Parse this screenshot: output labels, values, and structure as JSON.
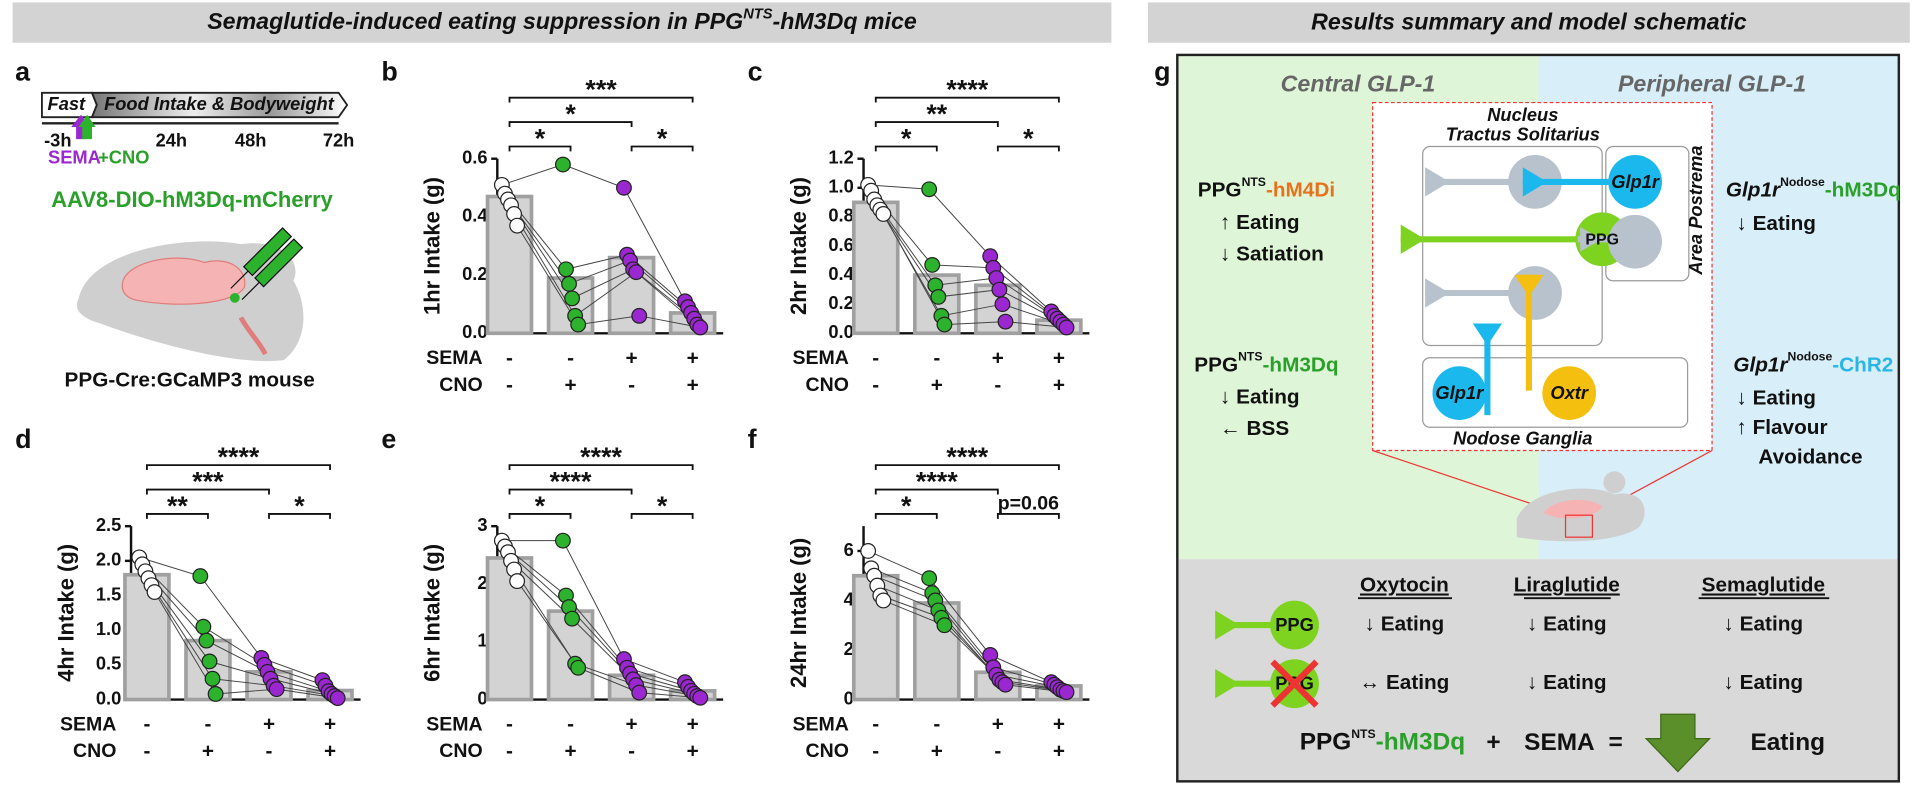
{
  "headers": {
    "left": {
      "text": "Semaglutide-induced eating suppression in PPG",
      "sup": "NTS",
      "suffix": "-hM3Dq mice"
    },
    "right": "Results summary and model schematic"
  },
  "panel_a": {
    "label": "a",
    "fast": "Fast",
    "phase": "Food Intake & Bodyweight",
    "times": [
      "-3h",
      "24h",
      "48h",
      "72h"
    ],
    "sema": "SEMA",
    "cno": "+CNO",
    "virus": "AAV8-DIO-hM3Dq-mCherry",
    "mouse": "PPG-Cre:GCaMP3 mouse"
  },
  "chart_data": [
    {
      "type": "bar",
      "panel": "b",
      "ylabel": "1hr Intake (g)",
      "ylim": [
        0,
        0.6
      ],
      "yticks": [
        {
          "value": 0,
          "label": "0.0"
        },
        0.2,
        0.4,
        0.6
      ],
      "conditions": [
        {
          "name": "SEMA",
          "signs": [
            "-",
            "-",
            "+",
            "+"
          ]
        },
        {
          "name": "CNO",
          "signs": [
            "-",
            "+",
            "-",
            "+"
          ]
        }
      ],
      "values": [
        0.47,
        0.19,
        0.26,
        0.07
      ],
      "bar_color": "#d3d3d3",
      "colors": [
        "#ffffff",
        "#2db22d",
        "#9b27d1",
        "#9b27d1"
      ],
      "mice": [
        [
          0.51,
          0.58,
          0.5,
          0.11
        ],
        [
          0.48,
          0.22,
          0.27,
          0.09
        ],
        [
          0.46,
          0.17,
          0.25,
          0.07
        ],
        [
          0.44,
          0.12,
          0.22,
          0.05
        ],
        [
          0.41,
          0.06,
          0.21,
          0.03
        ],
        [
          0.37,
          0.03,
          0.06,
          0.02
        ]
      ],
      "comparisons": [
        {
          "label": "***",
          "groups": [
            0,
            3
          ]
        },
        {
          "label": "*",
          "groups": [
            0,
            2
          ]
        },
        {
          "label": "*",
          "groups": [
            0,
            1
          ]
        },
        {
          "label": "*",
          "groups": [
            2,
            3
          ]
        }
      ]
    },
    {
      "type": "bar",
      "panel": "c",
      "ylabel": "2hr Intake (g)",
      "ylim": [
        0,
        1.2
      ],
      "yticks": [
        {
          "value": 0,
          "label": "0.0"
        },
        0.2,
        0.4,
        0.6,
        0.8,
        {
          "value": 1,
          "label": "1.0"
        },
        1.2
      ],
      "conditions": [
        {
          "name": "SEMA",
          "signs": [
            "-",
            "-",
            "+",
            "+"
          ]
        },
        {
          "name": "CNO",
          "signs": [
            "-",
            "+",
            "-",
            "+"
          ]
        }
      ],
      "values": [
        0.9,
        0.4,
        0.33,
        0.09
      ],
      "bar_color": "#d3d3d3",
      "colors": [
        "#ffffff",
        "#2db22d",
        "#9b27d1",
        "#9b27d1"
      ],
      "mice": [
        [
          1.02,
          0.99,
          0.53,
          0.15
        ],
        [
          0.98,
          0.47,
          0.45,
          0.12
        ],
        [
          0.92,
          0.33,
          0.38,
          0.1
        ],
        [
          0.88,
          0.25,
          0.3,
          0.08
        ],
        [
          0.85,
          0.12,
          0.2,
          0.06
        ],
        [
          0.82,
          0.06,
          0.08,
          0.04
        ]
      ],
      "comparisons": [
        {
          "label": "****",
          "groups": [
            0,
            3
          ]
        },
        {
          "label": "**",
          "groups": [
            0,
            2
          ]
        },
        {
          "label": "*",
          "groups": [
            0,
            1
          ]
        },
        {
          "label": "*",
          "groups": [
            2,
            3
          ]
        }
      ]
    },
    {
      "type": "bar",
      "panel": "d",
      "ylabel": "4hr Intake (g)",
      "ylim": [
        0,
        2.5
      ],
      "yticks": [
        {
          "value": 0,
          "label": "0.0"
        },
        0.5,
        {
          "value": 1,
          "label": "1.0"
        },
        1.5,
        {
          "value": 2,
          "label": "2.0"
        },
        2.5
      ],
      "conditions": [
        {
          "name": "SEMA",
          "signs": [
            "-",
            "-",
            "+",
            "+"
          ]
        },
        {
          "name": "CNO",
          "signs": [
            "-",
            "+",
            "-",
            "+"
          ]
        }
      ],
      "values": [
        1.8,
        0.85,
        0.4,
        0.13
      ],
      "bar_color": "#d3d3d3",
      "colors": [
        "#ffffff",
        "#2db22d",
        "#9b27d1",
        "#9b27d1"
      ],
      "mice": [
        [
          2.05,
          1.78,
          0.6,
          0.28
        ],
        [
          1.95,
          1.05,
          0.5,
          0.2
        ],
        [
          1.85,
          0.85,
          0.4,
          0.12
        ],
        [
          1.75,
          0.55,
          0.3,
          0.08
        ],
        [
          1.65,
          0.3,
          0.2,
          0.05
        ],
        [
          1.55,
          0.08,
          0.15,
          0.02
        ]
      ],
      "comparisons": [
        {
          "label": "****",
          "groups": [
            0,
            3
          ]
        },
        {
          "label": "***",
          "groups": [
            0,
            2
          ]
        },
        {
          "label": "**",
          "groups": [
            0,
            1
          ]
        },
        {
          "label": "*",
          "groups": [
            2,
            3
          ]
        }
      ]
    },
    {
      "type": "bar",
      "panel": "e",
      "ylabel": "6hr Intake (g)",
      "ylim": [
        0,
        3
      ],
      "yticks": [
        0,
        1,
        2,
        3
      ],
      "conditions": [
        {
          "name": "SEMA",
          "signs": [
            "-",
            "-",
            "+",
            "+"
          ]
        },
        {
          "name": "CNO",
          "signs": [
            "-",
            "+",
            "-",
            "+"
          ]
        }
      ],
      "values": [
        2.45,
        1.53,
        0.42,
        0.15
      ],
      "bar_color": "#d3d3d3",
      "colors": [
        "#ffffff",
        "#2db22d",
        "#9b27d1",
        "#9b27d1"
      ],
      "mice": [
        [
          2.75,
          2.75,
          0.7,
          0.3
        ],
        [
          2.65,
          1.8,
          0.55,
          0.22
        ],
        [
          2.55,
          1.6,
          0.45,
          0.15
        ],
        [
          2.4,
          1.4,
          0.35,
          0.1
        ],
        [
          2.25,
          0.62,
          0.25,
          0.06
        ],
        [
          2.05,
          0.55,
          0.12,
          0.03
        ]
      ],
      "comparisons": [
        {
          "label": "****",
          "groups": [
            0,
            3
          ]
        },
        {
          "label": "****",
          "groups": [
            0,
            2
          ]
        },
        {
          "label": "*",
          "groups": [
            0,
            1
          ]
        },
        {
          "label": "*",
          "groups": [
            2,
            3
          ]
        }
      ]
    },
    {
      "type": "bar",
      "panel": "f",
      "ylabel": "24hr Intake (g)",
      "ylim": [
        0,
        7
      ],
      "yticks": [
        0,
        2,
        4,
        6
      ],
      "conditions": [
        {
          "name": "SEMA",
          "signs": [
            "-",
            "-",
            "+",
            "+"
          ]
        },
        {
          "name": "CNO",
          "signs": [
            "-",
            "+",
            "-",
            "+"
          ]
        }
      ],
      "values": [
        5,
        3.9,
        1.1,
        0.55
      ],
      "bar_color": "#d3d3d3",
      "colors": [
        "#ffffff",
        "#2db22d",
        "#9b27d1",
        "#9b27d1"
      ],
      "mice": [
        [
          6,
          4.9,
          1.8,
          0.7
        ],
        [
          5.3,
          4.3,
          1.3,
          0.6
        ],
        [
          5,
          4,
          1,
          0.5
        ],
        [
          4.6,
          3.6,
          0.8,
          0.4
        ],
        [
          4.2,
          3.3,
          0.7,
          0.35
        ],
        [
          4,
          3,
          0.6,
          0.3
        ]
      ],
      "comparisons": [
        {
          "label": "****",
          "groups": [
            0,
            3
          ]
        },
        {
          "label": "****",
          "groups": [
            0,
            2
          ]
        },
        {
          "label": "*",
          "groups": [
            0,
            1
          ]
        },
        {
          "label": "p=0.06",
          "groups": [
            2,
            3
          ]
        }
      ]
    }
  ],
  "panel_g": {
    "label": "g",
    "central": "Central GLP-1",
    "peripheral": "Peripheral GLP-1",
    "nts": [
      "Nucleus",
      "Tractus Solitarius"
    ],
    "ap": "Area Postrema",
    "glp1r_ap": "Glp1r",
    "ppg": "PPG",
    "glp1r_ng": "Glp1r",
    "oxtr": "Oxtr",
    "ng": "Nodose Ganglia",
    "left": [
      {
        "construct": {
          "base": "PPG",
          "sup": "NTS",
          "suffix": "-hM4Di",
          "color": "#e8721c"
        },
        "effects": [
          "↑ Eating",
          "↓ Satiation"
        ]
      },
      {
        "construct": {
          "base": "PPG",
          "sup": "NTS",
          "suffix": "-hM3Dq",
          "color": "#2aa02a"
        },
        "effects": [
          "↓ Eating",
          "← BSS"
        ]
      }
    ],
    "right": [
      {
        "construct": {
          "base": "Glp1r",
          "sup": "Nodose",
          "suffix": "-hM3Dq",
          "color": "#2aa02a"
        },
        "effects": [
          "↓ Eating"
        ]
      },
      {
        "construct": {
          "base": "Glp1r",
          "sup": "Nodose",
          "suffix": "-ChR2",
          "color": "#29b6e6"
        },
        "effects": [
          "↓ Eating",
          "↑ Flavour",
          "Avoidance"
        ]
      }
    ],
    "table": {
      "columns": [
        "Oxytocin",
        "Liraglutide",
        "Semaglutide"
      ],
      "rows": [
        {
          "icon": "PPG",
          "cells": [
            "↓ Eating",
            "↓ Eating",
            "↓ Eating"
          ]
        },
        {
          "icon": "PPG",
          "cells": [
            "↔ Eating",
            "↓ Eating",
            "↓ Eating"
          ]
        }
      ]
    },
    "summary": {
      "construct": {
        "base": "PPG",
        "sup": "NTS",
        "suffix": "-hM3Dq",
        "color": "#2aa02a"
      },
      "plus": "+",
      "drug": "SEMA",
      "equals": "=",
      "result": "Eating"
    }
  }
}
